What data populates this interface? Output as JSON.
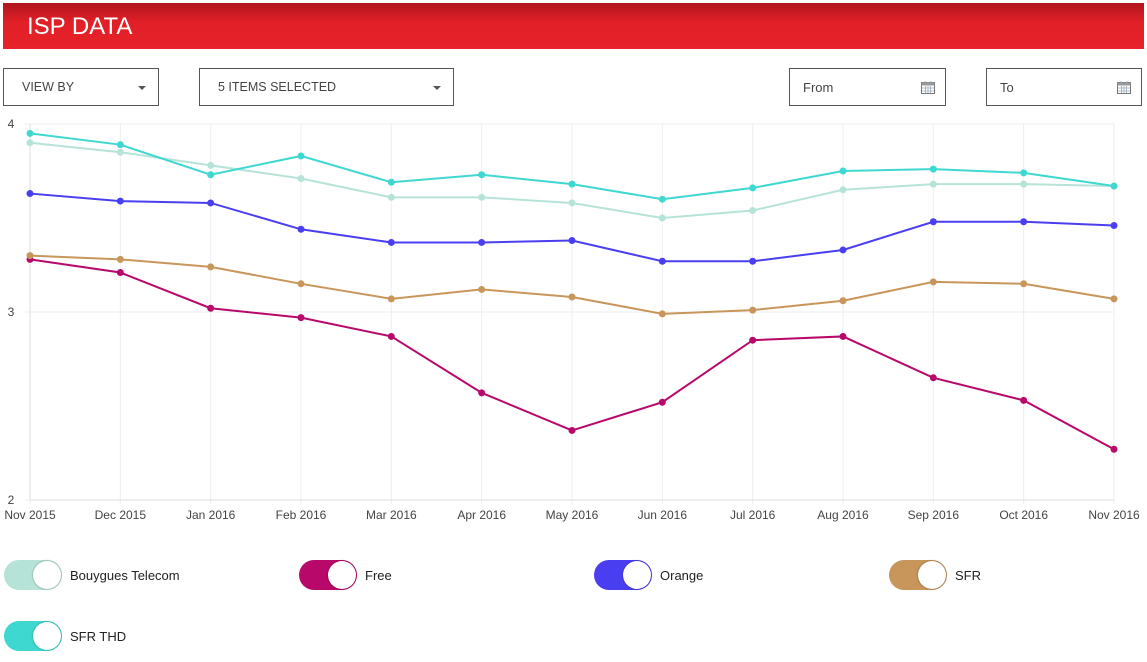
{
  "header": {
    "title": "ISP DATA"
  },
  "filters": {
    "view_by": "VIEW BY",
    "items": "5 ITEMS SELECTED",
    "from": "From",
    "to": "To"
  },
  "chart_data": {
    "type": "line",
    "x": [
      "Nov 2015",
      "Dec 2015",
      "Jan 2016",
      "Feb 2016",
      "Mar 2016",
      "Apr 2016",
      "May 2016",
      "Jun 2016",
      "Jul 2016",
      "Aug 2016",
      "Sep 2016",
      "Oct 2016",
      "Nov 2016"
    ],
    "ylim": [
      2,
      4
    ],
    "yticks": [
      "2",
      "3",
      "4"
    ],
    "grid": true,
    "legend_placement": "bottom",
    "series": [
      {
        "name": "Bouygues Telecom",
        "color": "#b6e3d8",
        "values": [
          3.9,
          3.85,
          3.78,
          3.71,
          3.61,
          3.61,
          3.58,
          3.5,
          3.54,
          3.65,
          3.68,
          3.68,
          3.67
        ]
      },
      {
        "name": "Free",
        "color": "#b8086a",
        "values": [
          3.28,
          3.21,
          3.02,
          2.97,
          2.87,
          2.57,
          2.37,
          2.52,
          2.85,
          2.87,
          2.65,
          2.53,
          2.27
        ]
      },
      {
        "name": "Orange",
        "color": "#4a3ff0",
        "values": [
          3.63,
          3.59,
          3.58,
          3.44,
          3.37,
          3.37,
          3.38,
          3.27,
          3.27,
          3.33,
          3.48,
          3.48,
          3.46
        ]
      },
      {
        "name": "SFR",
        "color": "#c8965a",
        "values": [
          3.3,
          3.28,
          3.24,
          3.15,
          3.07,
          3.12,
          3.08,
          2.99,
          3.01,
          3.06,
          3.16,
          3.15,
          3.07
        ]
      },
      {
        "name": "SFR THD",
        "color": "#3fd8d0",
        "values": [
          3.95,
          3.89,
          3.73,
          3.83,
          3.69,
          3.73,
          3.68,
          3.6,
          3.66,
          3.75,
          3.76,
          3.74,
          3.67
        ]
      }
    ]
  }
}
